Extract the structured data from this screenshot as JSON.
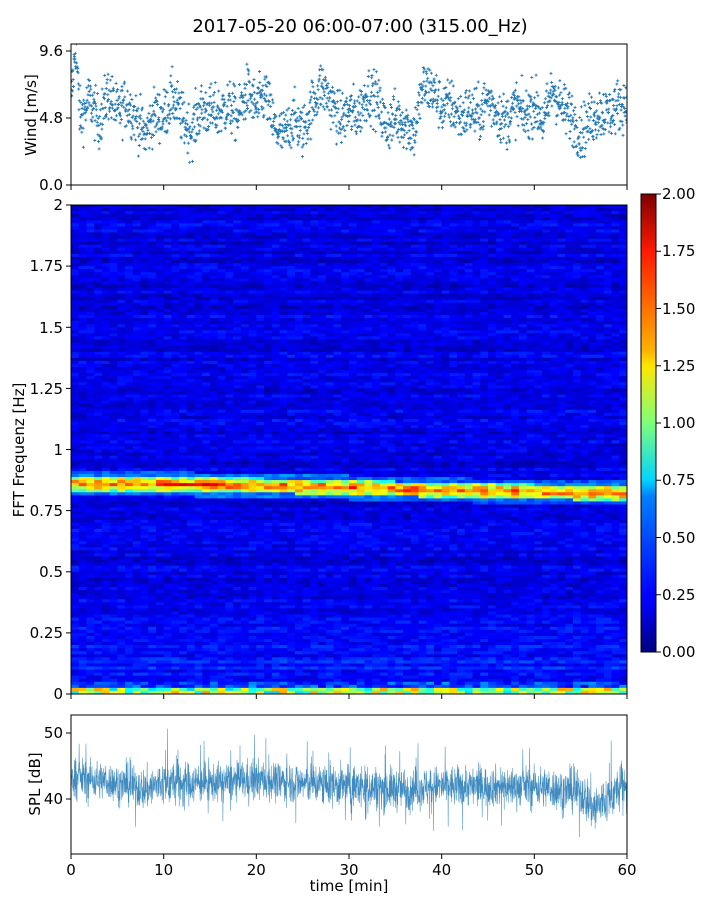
{
  "figure": {
    "title": "2017-05-20 06:00-07:00 (315.00_Hz)"
  },
  "colors": {
    "scatter": "#1f77b4",
    "line": "#1f77b4",
    "colormap": "jet"
  },
  "chart_data": [
    {
      "type": "scatter",
      "name": "wind",
      "ylabel": "Wind [m/s]",
      "xlabel": "",
      "xlim": [
        0,
        60
      ],
      "ylim": [
        0.0,
        9.6
      ],
      "yticks": [
        "0.0",
        "4.8",
        "9.6"
      ],
      "marker": "plus",
      "points_count": 1800,
      "values_range": [
        1.2,
        9.6
      ],
      "samples": [
        {
          "x": 0.0,
          "y": 5.6
        },
        {
          "x": 0.5,
          "y": 9.5
        },
        {
          "x": 1.0,
          "y": 4.4
        },
        {
          "x": 2.0,
          "y": 5.9
        },
        {
          "x": 3.0,
          "y": 4.2
        },
        {
          "x": 4.0,
          "y": 6.3
        },
        {
          "x": 5.0,
          "y": 4.9
        },
        {
          "x": 6.0,
          "y": 5.6
        },
        {
          "x": 7.0,
          "y": 4.6
        },
        {
          "x": 8.0,
          "y": 3.4
        },
        {
          "x": 9.0,
          "y": 4.8
        },
        {
          "x": 10.0,
          "y": 4.7
        },
        {
          "x": 11.0,
          "y": 6.0
        },
        {
          "x": 12.0,
          "y": 4.5
        },
        {
          "x": 13.0,
          "y": 3.6
        },
        {
          "x": 14.0,
          "y": 5.2
        },
        {
          "x": 15.0,
          "y": 5.0
        },
        {
          "x": 16.0,
          "y": 4.9
        },
        {
          "x": 17.0,
          "y": 5.4
        },
        {
          "x": 18.0,
          "y": 4.6
        },
        {
          "x": 19.0,
          "y": 6.4
        },
        {
          "x": 20.0,
          "y": 5.2
        },
        {
          "x": 21.0,
          "y": 6.2
        },
        {
          "x": 22.0,
          "y": 3.8
        },
        {
          "x": 23.0,
          "y": 3.3
        },
        {
          "x": 24.0,
          "y": 4.6
        },
        {
          "x": 25.0,
          "y": 3.6
        },
        {
          "x": 26.0,
          "y": 5.4
        },
        {
          "x": 27.0,
          "y": 6.8
        },
        {
          "x": 28.0,
          "y": 5.7
        },
        {
          "x": 29.0,
          "y": 4.4
        },
        {
          "x": 30.0,
          "y": 5.0
        },
        {
          "x": 31.0,
          "y": 4.8
        },
        {
          "x": 32.0,
          "y": 6.3
        },
        {
          "x": 33.0,
          "y": 5.8
        },
        {
          "x": 34.0,
          "y": 3.9
        },
        {
          "x": 35.0,
          "y": 4.6
        },
        {
          "x": 36.0,
          "y": 4.3
        },
        {
          "x": 37.0,
          "y": 3.5
        },
        {
          "x": 38.0,
          "y": 6.7
        },
        {
          "x": 39.0,
          "y": 6.5
        },
        {
          "x": 40.0,
          "y": 5.3
        },
        {
          "x": 41.0,
          "y": 5.5
        },
        {
          "x": 42.0,
          "y": 4.6
        },
        {
          "x": 43.0,
          "y": 5.1
        },
        {
          "x": 44.0,
          "y": 4.7
        },
        {
          "x": 45.0,
          "y": 5.9
        },
        {
          "x": 46.0,
          "y": 4.9
        },
        {
          "x": 47.0,
          "y": 4.3
        },
        {
          "x": 48.0,
          "y": 5.4
        },
        {
          "x": 49.0,
          "y": 4.6
        },
        {
          "x": 50.0,
          "y": 5.6
        },
        {
          "x": 51.0,
          "y": 4.2
        },
        {
          "x": 52.0,
          "y": 6.6
        },
        {
          "x": 53.0,
          "y": 5.2
        },
        {
          "x": 54.0,
          "y": 4.7
        },
        {
          "x": 55.0,
          "y": 3.5
        },
        {
          "x": 56.0,
          "y": 4.4
        },
        {
          "x": 57.0,
          "y": 5.0
        },
        {
          "x": 58.0,
          "y": 4.8
        },
        {
          "x": 59.0,
          "y": 5.4
        },
        {
          "x": 60.0,
          "y": 5.6
        }
      ]
    },
    {
      "type": "heatmap",
      "name": "spectrogram",
      "ylabel": "FFT Frequenz [Hz]",
      "xlabel": "",
      "xlim": [
        0,
        60
      ],
      "ylim": [
        0,
        2
      ],
      "yticks": [
        "0",
        "0.25",
        "0.5",
        "0.75",
        "1",
        "1.25",
        "1.5",
        "1.75",
        "2"
      ],
      "colorbar": {
        "min": 0.0,
        "max": 2.0,
        "ticks": [
          "0.00",
          "0.25",
          "0.50",
          "0.75",
          "1.00",
          "1.25",
          "1.50",
          "1.75",
          "2.00"
        ],
        "colormap": "jet"
      },
      "background_level": 0.2,
      "features": [
        {
          "label": "tonal line",
          "freq_start": 0.86,
          "freq_end": 0.82,
          "level": 1.6
        },
        {
          "label": "low-frequency band",
          "freq_start": 0.0,
          "freq_end": 0.03,
          "level": 0.9
        }
      ]
    },
    {
      "type": "line",
      "name": "spl",
      "ylabel": "SPL [dB]",
      "xlabel": "time [min]",
      "xlim": [
        0,
        60
      ],
      "ylim": [
        31.5,
        53
      ],
      "yticks": [
        "40",
        "50"
      ],
      "xticks": [
        "0",
        "10",
        "20",
        "30",
        "40",
        "50",
        "60"
      ],
      "envelope": [
        {
          "x": 0,
          "mean": 43.5,
          "min": 36,
          "max": 50
        },
        {
          "x": 5,
          "mean": 42.5,
          "min": 36,
          "max": 49
        },
        {
          "x": 8,
          "mean": 41.5,
          "min": 34,
          "max": 49
        },
        {
          "x": 10,
          "mean": 42.5,
          "min": 36,
          "max": 52
        },
        {
          "x": 15,
          "mean": 42.5,
          "min": 36,
          "max": 49
        },
        {
          "x": 20,
          "mean": 43.0,
          "min": 36,
          "max": 50
        },
        {
          "x": 25,
          "mean": 42.5,
          "min": 35,
          "max": 49
        },
        {
          "x": 30,
          "mean": 42.0,
          "min": 35,
          "max": 50
        },
        {
          "x": 35,
          "mean": 41.5,
          "min": 34,
          "max": 49
        },
        {
          "x": 40,
          "mean": 42.0,
          "min": 35,
          "max": 49
        },
        {
          "x": 45,
          "mean": 42.0,
          "min": 35,
          "max": 49
        },
        {
          "x": 50,
          "mean": 42.0,
          "min": 35,
          "max": 49
        },
        {
          "x": 55,
          "mean": 41.0,
          "min": 33,
          "max": 48
        },
        {
          "x": 56.5,
          "mean": 38.5,
          "min": 32,
          "max": 51
        },
        {
          "x": 60,
          "mean": 42.5,
          "min": 35,
          "max": 49
        }
      ]
    }
  ]
}
